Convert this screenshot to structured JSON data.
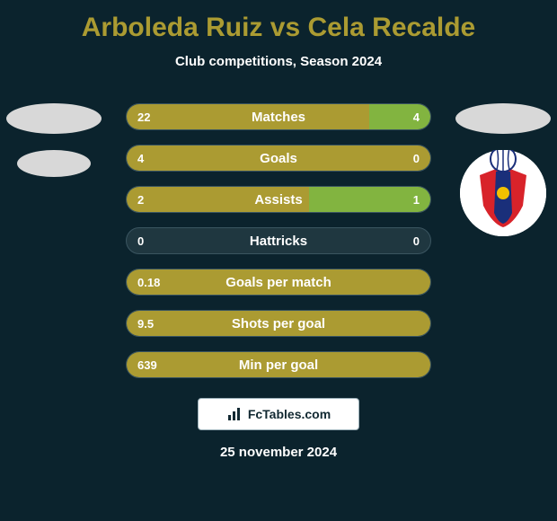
{
  "background_color": "#0b232d",
  "title": {
    "text": "Arboleda Ruiz vs Cela Recalde",
    "color": "#ab9b32",
    "fontsize": 30
  },
  "subtitle": {
    "text": "Club competitions, Season 2024",
    "color": "#ffffff",
    "fontsize": 15
  },
  "player_left": {
    "avatar_color": "#d8d8d8",
    "badge_color": "#d8d8d8"
  },
  "player_right": {
    "avatar_color": "#d8d8d8",
    "badge": {
      "bg": "#ffffff",
      "shield_fill": "#d8232a",
      "shield_stripe": "#1a2f7a",
      "shield_dot": "#f2c100",
      "ball_fill": "#ffffff",
      "ball_stroke": "#1a2f7a"
    }
  },
  "bar_style": {
    "track_color": "#1f3740",
    "left_color": "#ab9b32",
    "right_color": "#82b440",
    "label_color": "#ffffff",
    "value_color": "#ffffff",
    "label_fontsize": 15,
    "value_fontsize": 13,
    "border_color": "#3a5560"
  },
  "rows": [
    {
      "label": "Matches",
      "left_val": "22",
      "right_val": "4",
      "left_pct": 80,
      "right_pct": 20
    },
    {
      "label": "Goals",
      "left_val": "4",
      "right_val": "0",
      "left_pct": 100,
      "right_pct": 0
    },
    {
      "label": "Assists",
      "left_val": "2",
      "right_val": "1",
      "left_pct": 60,
      "right_pct": 40
    },
    {
      "label": "Hattricks",
      "left_val": "0",
      "right_val": "0",
      "left_pct": 0,
      "right_pct": 0
    },
    {
      "label": "Goals per match",
      "left_val": "0.18",
      "right_val": "",
      "left_pct": 100,
      "right_pct": 0
    },
    {
      "label": "Shots per goal",
      "left_val": "9.5",
      "right_val": "",
      "left_pct": 100,
      "right_pct": 0
    },
    {
      "label": "Min per goal",
      "left_val": "639",
      "right_val": "",
      "left_pct": 100,
      "right_pct": 0
    }
  ],
  "footer": {
    "logo_bg": "#ffffff",
    "logo_text": "FcTables.com",
    "logo_text_color": "#122932",
    "logo_border": "#9bb0b9",
    "logo_fontsize": 14,
    "date_text": "25 november 2024",
    "date_color": "#ffffff",
    "date_fontsize": 15
  }
}
